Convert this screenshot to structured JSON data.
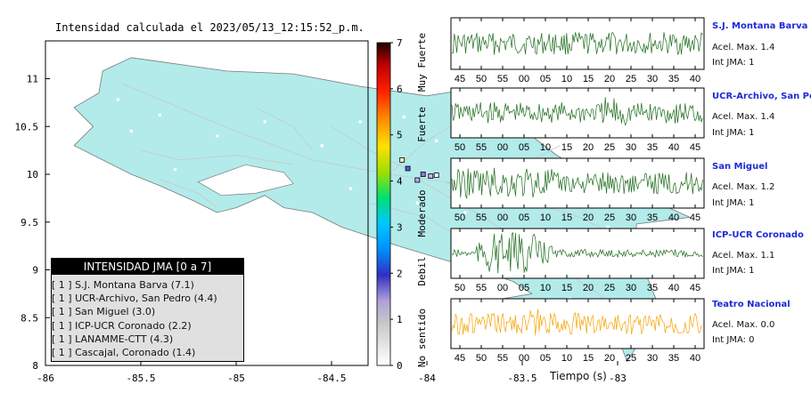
{
  "map": {
    "title": "Intensidad calculada el 2023/05/13_12:15:52_p.m.",
    "x_ticks": [
      "-86",
      "-85.5",
      "-85",
      "-84.5",
      "-84",
      "-83.5",
      "-83"
    ],
    "y_ticks": [
      "11",
      "10.5",
      "10",
      "9.5",
      "9",
      "8.5",
      "8"
    ],
    "colors": {
      "land": "#b2ebea",
      "sea": "#ffffff",
      "roads": "#c8c8c8",
      "stations_fill": "#d8d8ff"
    }
  },
  "colorbar": {
    "ticks": [
      "7",
      "6",
      "5",
      "4",
      "3",
      "2",
      "1",
      "0"
    ],
    "categories": [
      "Muy Fuerte",
      "Fuerte",
      "Moderado",
      "Debil",
      "No sentido"
    ]
  },
  "legend": {
    "header": "INTENSIDAD JMA [0 a 7]",
    "items": [
      "[ 1 ]  S.J. Montana Barva (7.1)",
      "[ 1 ]  UCR-Archivo, San Pedro (4.4)",
      "[ 1 ]  San Miguel (3.0)",
      "[ 1 ]  ICP-UCR Coronado (2.2)",
      "[ 1 ]  LANAMME-CTT (4.3)",
      "[ 1 ]  Cascajal, Coronado (1.4)"
    ]
  },
  "stations": [
    {
      "name": "S.J. Montana Barva",
      "acel": "Acel. Max. 1.4",
      "int": "Int JMA: 1",
      "color": "#1b6b1b",
      "ticks": [
        "45",
        "50",
        "55",
        "00",
        "05",
        "10",
        "15",
        "20",
        "25",
        "30",
        "35",
        "40"
      ]
    },
    {
      "name": "UCR-Archivo, San Pedro",
      "acel": "Acel. Max. 1.4",
      "int": "Int JMA: 1",
      "color": "#1b6b1b",
      "ticks": [
        "50",
        "55",
        "00",
        "05",
        "10",
        "15",
        "20",
        "25",
        "30",
        "35",
        "40",
        "45"
      ]
    },
    {
      "name": "San Miguel",
      "acel": "Acel. Max. 1.2",
      "int": "Int JMA: 1",
      "color": "#1b6b1b",
      "ticks": [
        "50",
        "55",
        "00",
        "05",
        "10",
        "15",
        "20",
        "25",
        "30",
        "35",
        "40",
        "45"
      ]
    },
    {
      "name": "ICP-UCR Coronado",
      "acel": "Acel. Max. 1.1",
      "int": "Int JMA: 1",
      "color": "#1b6b1b",
      "ticks": [
        "50",
        "55",
        "00",
        "05",
        "10",
        "15",
        "20",
        "25",
        "30",
        "35",
        "40",
        "45"
      ]
    },
    {
      "name": "Teatro Nacional",
      "acel": "Acel. Max. 0.0",
      "int": "Int JMA: 0",
      "color": "#f5a300",
      "ticks": [
        "45",
        "50",
        "55",
        "00",
        "05",
        "10",
        "15",
        "20",
        "25",
        "30",
        "35",
        "40"
      ]
    }
  ],
  "time_axis_label": "Tiempo (s)"
}
